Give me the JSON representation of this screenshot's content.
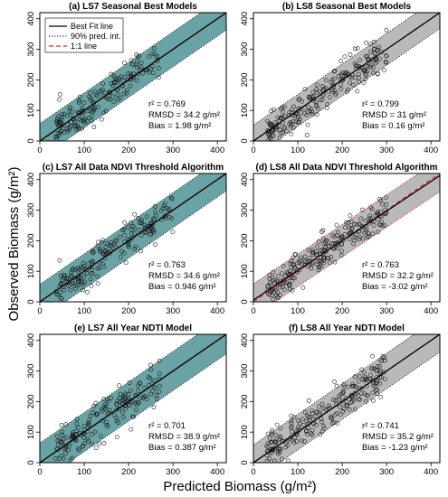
{
  "figure": {
    "ylabel": "Observed Biomass (g/m²)",
    "xlabel": "Predicted Biomass (g/m²)"
  },
  "colors": {
    "teal": "#6aa3a5",
    "gray": "#b9b9b9",
    "fit_line": "#000000",
    "one_to_one": "#e8201e",
    "band_edge_dark": "#333333",
    "band_edge_red": "#e8201e"
  },
  "chart_data": [
    {
      "type": "scatter",
      "title": "(a) LS7 Seasonal Best Models",
      "xlim": [
        0,
        420
      ],
      "ylim": [
        0,
        420
      ],
      "xticks": [
        0,
        100,
        200,
        300,
        400
      ],
      "yticks": [
        0,
        100,
        200,
        300,
        400
      ],
      "band_color": "teal",
      "band_edge": "band_edge_dark",
      "fit": {
        "slope": 1.0,
        "intercept": 0,
        "band_half": 57
      },
      "legend": {
        "items": [
          "Best Fit line",
          "90% pred. int.",
          "1:1 line"
        ],
        "placement": "top-left"
      },
      "stats": {
        "r2": "r² = 0.769",
        "rmsd": "RMSD = 34.2 g/m²",
        "bias": "Bias = 1.98 g/m²"
      },
      "seed": 11,
      "n": 180,
      "spread": 30,
      "xrange": [
        35,
        270
      ]
    },
    {
      "type": "scatter",
      "title": "(b) LS8 Seasonal Best Models",
      "xlim": [
        0,
        420
      ],
      "ylim": [
        0,
        420
      ],
      "xticks": [
        0,
        100,
        200,
        300,
        400
      ],
      "yticks": [
        0,
        100,
        200,
        300,
        400
      ],
      "band_color": "gray",
      "band_edge": "band_edge_dark",
      "fit": {
        "slope": 1.0,
        "intercept": 0,
        "band_half": 52
      },
      "stats": {
        "r2": "r² = 0.799",
        "rmsd": "RMSD = 31 g/m²",
        "bias": "Bias = 0.16 g/m²"
      },
      "seed": 23,
      "n": 230,
      "spread": 28,
      "xrange": [
        30,
        300
      ]
    },
    {
      "type": "scatter",
      "title": "(c) LS7 All Data NDVI Threshold Algorithm",
      "xlim": [
        0,
        420
      ],
      "ylim": [
        0,
        420
      ],
      "xticks": [
        0,
        100,
        200,
        300,
        400
      ],
      "yticks": [
        0,
        100,
        200,
        300,
        400
      ],
      "band_color": "teal",
      "band_edge": "band_edge_dark",
      "fit": {
        "slope": 1.0,
        "intercept": 0,
        "band_half": 57
      },
      "stats": {
        "r2": "r² = 0.763",
        "rmsd": "RMSD = 34.6 g/m²",
        "bias": "Bias = 0.946 g/m²"
      },
      "seed": 37,
      "n": 190,
      "spread": 30,
      "xrange": [
        35,
        300
      ]
    },
    {
      "type": "scatter",
      "title": "(d) LS8 All Data NDVI Threshold Algorithm",
      "xlim": [
        0,
        420
      ],
      "ylim": [
        0,
        420
      ],
      "xticks": [
        0,
        100,
        200,
        300,
        400
      ],
      "yticks": [
        0,
        100,
        200,
        300,
        400
      ],
      "band_color": "gray",
      "band_edge": "band_edge_red",
      "fit": {
        "slope": 0.97,
        "intercept": 6,
        "band_half": 53
      },
      "stats": {
        "r2": "r² = 0.763",
        "rmsd": "RMSD = 32.2 g/m²",
        "bias": "Bias = -3.02 g/m²"
      },
      "seed": 41,
      "n": 240,
      "spread": 29,
      "xrange": [
        30,
        300
      ]
    },
    {
      "type": "scatter",
      "title": "(e) LS7 All Year NDTI Model",
      "xlim": [
        0,
        420
      ],
      "ylim": [
        0,
        420
      ],
      "xticks": [
        0,
        100,
        200,
        300,
        400
      ],
      "yticks": [
        0,
        100,
        200,
        300,
        400
      ],
      "band_color": "teal",
      "band_edge": "band_edge_dark",
      "fit": {
        "slope": 1.0,
        "intercept": 0,
        "band_half": 64
      },
      "stats": {
        "r2": "r² = 0.701",
        "rmsd": "RMSD = 38.9 g/m²",
        "bias": "Bias = 0.387 g/m²"
      },
      "seed": 53,
      "n": 185,
      "spread": 34,
      "xrange": [
        35,
        270
      ]
    },
    {
      "type": "scatter",
      "title": "(f) LS8 All Year NDTI Model",
      "xlim": [
        0,
        420
      ],
      "ylim": [
        0,
        420
      ],
      "xticks": [
        0,
        100,
        200,
        300,
        400
      ],
      "yticks": [
        0,
        100,
        200,
        300,
        400
      ],
      "band_color": "gray",
      "band_edge": "band_edge_dark",
      "fit": {
        "slope": 1.0,
        "intercept": 0,
        "band_half": 58
      },
      "stats": {
        "r2": "r² = 0.741",
        "rmsd": "RMSD = 35.2 g/m²",
        "bias": "Bias = -1.23 g/m²"
      },
      "seed": 67,
      "n": 235,
      "spread": 31,
      "xrange": [
        30,
        300
      ]
    }
  ]
}
